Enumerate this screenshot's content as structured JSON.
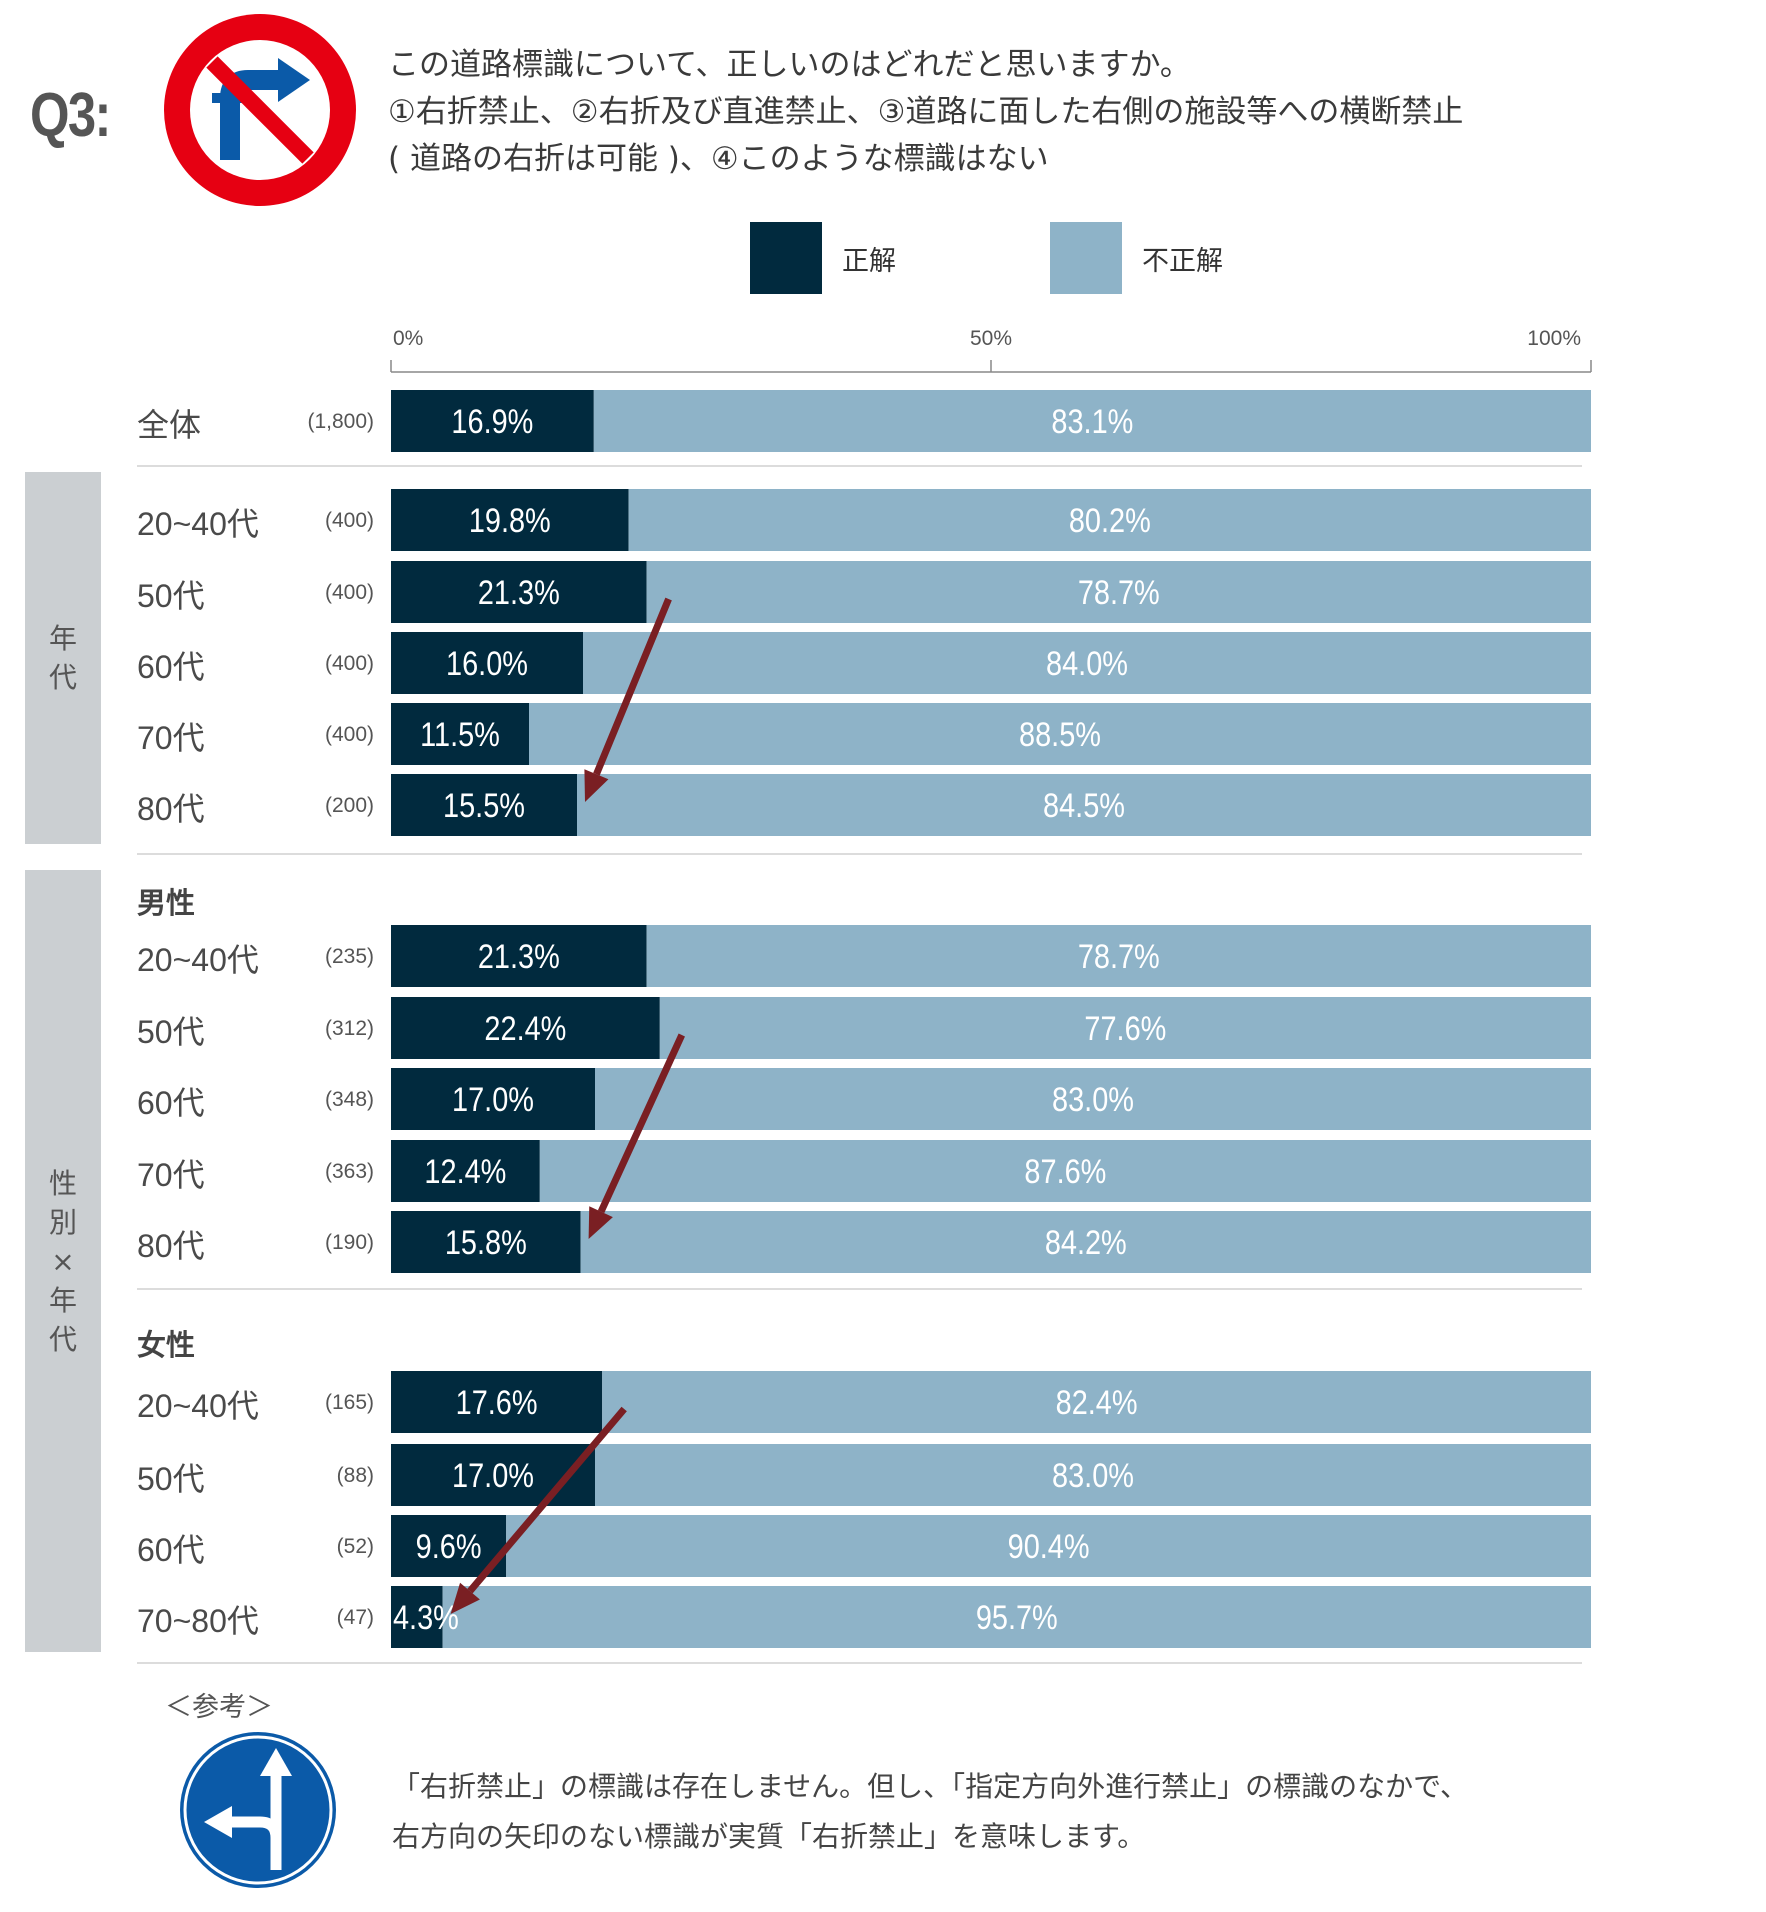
{
  "question": {
    "label": "Q3:",
    "lines": [
      "この道路標識について、正しいのはどれだと思いますか。",
      "①右折禁止、②右折及び直進禁止、③道路に面した右側の施設等への横断禁止",
      "( 道路の右折は可能 )、④このような標識はない"
    ]
  },
  "legend": [
    {
      "label": "正解",
      "color": "#012a3e"
    },
    {
      "label": "不正解",
      "color": "#8eb3c8"
    }
  ],
  "panels": {
    "age": "年代",
    "gender_age": "性別×年代"
  },
  "subheads": {
    "male": "男性",
    "female": "女性"
  },
  "chart_data": {
    "type": "bar",
    "orientation": "horizontal-stacked-100",
    "axis_ticks": [
      "0%",
      "50%",
      "100%"
    ],
    "xlim": [
      0,
      100
    ],
    "series_names": [
      "正解",
      "不正解"
    ],
    "rows": [
      {
        "label": "全体",
        "n": "(1,800)",
        "correct": 16.9,
        "incorrect": 83.1,
        "correct_label": "16.9%",
        "incorrect_label": "83.1%"
      },
      {
        "label": "20~40代",
        "n": "(400)",
        "correct": 19.8,
        "incorrect": 80.2,
        "correct_label": "19.8%",
        "incorrect_label": "80.2%"
      },
      {
        "label": "50代",
        "n": "(400)",
        "correct": 21.3,
        "incorrect": 78.7,
        "correct_label": "21.3%",
        "incorrect_label": "78.7%"
      },
      {
        "label": "60代",
        "n": "(400)",
        "correct": 16.0,
        "incorrect": 84.0,
        "correct_label": "16.0%",
        "incorrect_label": "84.0%"
      },
      {
        "label": "70代",
        "n": "(400)",
        "correct": 11.5,
        "incorrect": 88.5,
        "correct_label": "11.5%",
        "incorrect_label": "88.5%"
      },
      {
        "label": "80代",
        "n": "(200)",
        "correct": 15.5,
        "incorrect": 84.5,
        "correct_label": "15.5%",
        "incorrect_label": "84.5%"
      },
      {
        "label": "20~40代",
        "n": "(235)",
        "correct": 21.3,
        "incorrect": 78.7,
        "correct_label": "21.3%",
        "incorrect_label": "78.7%"
      },
      {
        "label": "50代",
        "n": "(312)",
        "correct": 22.4,
        "incorrect": 77.6,
        "correct_label": "22.4%",
        "incorrect_label": "77.6%"
      },
      {
        "label": "60代",
        "n": "(348)",
        "correct": 17.0,
        "incorrect": 83.0,
        "correct_label": "17.0%",
        "incorrect_label": "83.0%"
      },
      {
        "label": "70代",
        "n": "(363)",
        "correct": 12.4,
        "incorrect": 87.6,
        "correct_label": "12.4%",
        "incorrect_label": "87.6%"
      },
      {
        "label": "80代",
        "n": "(190)",
        "correct": 15.8,
        "incorrect": 84.2,
        "correct_label": "15.8%",
        "incorrect_label": "84.2%"
      },
      {
        "label": "20~40代",
        "n": "(165)",
        "correct": 17.6,
        "incorrect": 82.4,
        "correct_label": "17.6%",
        "incorrect_label": "82.4%"
      },
      {
        "label": "50代",
        "n": "(88)",
        "correct": 17.0,
        "incorrect": 83.0,
        "correct_label": "17.0%",
        "incorrect_label": "83.0%"
      },
      {
        "label": "60代",
        "n": "(52)",
        "correct": 9.6,
        "incorrect": 90.4,
        "correct_label": "9.6%",
        "incorrect_label": "90.4%"
      },
      {
        "label": "70~80代",
        "n": "(47)",
        "correct": 4.3,
        "incorrect": 95.7,
        "correct_label": "4.3%",
        "incorrect_label": "95.7%"
      }
    ],
    "trend_arrows": [
      {
        "from_row": 2,
        "to_row": 5,
        "color": "#7a1f23"
      },
      {
        "from_row": 7,
        "to_row": 10,
        "color": "#7a1f23"
      },
      {
        "from_row": 11,
        "to_row": 14,
        "color": "#7a1f23"
      }
    ]
  },
  "reference": {
    "title": "＜参考＞",
    "lines": [
      "「右折禁止」の標識は存在しません。但し、「指定方向外進行禁止」の標識のなかで、",
      "右方向の矢印のない標識が実質「右折禁止」を意味します。"
    ]
  },
  "icons": {
    "question_sign": "no-right-turn-straight-sign-icon",
    "reference_sign": "straight-or-left-only-sign-icon"
  }
}
